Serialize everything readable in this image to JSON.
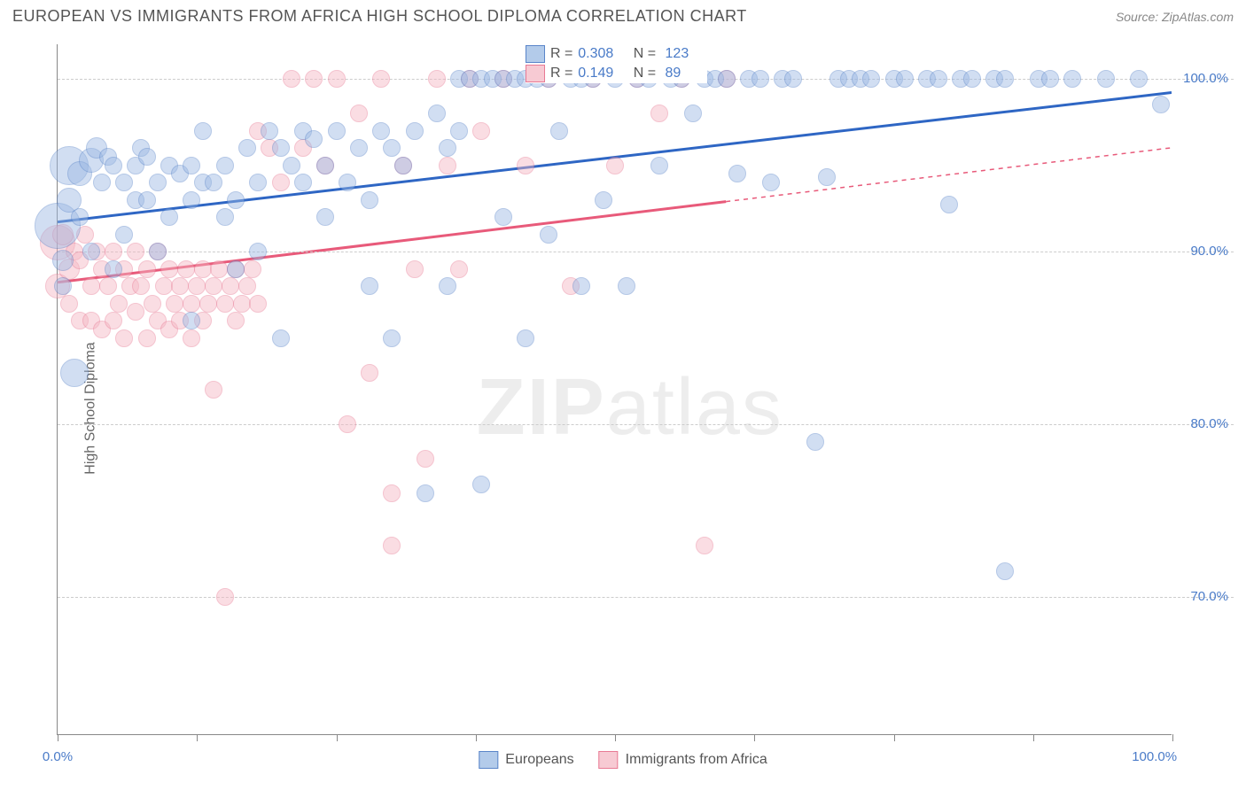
{
  "header": {
    "title": "EUROPEAN VS IMMIGRANTS FROM AFRICA HIGH SCHOOL DIPLOMA CORRELATION CHART",
    "source": "Source: ZipAtlas.com"
  },
  "watermark": {
    "prefix": "ZIP",
    "suffix": "atlas"
  },
  "chart": {
    "type": "scatter",
    "background_color": "#ffffff",
    "grid_color": "#cccccc",
    "axis_color": "#888888",
    "ylabel": "High School Diploma",
    "ylabel_color": "#666666",
    "ylabel_fontsize": 16,
    "tick_label_color": "#4a7bc8",
    "tick_fontsize": 15,
    "xlim": [
      0,
      100
    ],
    "ylim": [
      62,
      102
    ],
    "yticks": [
      70,
      80,
      90,
      100
    ],
    "ytick_labels": [
      "70.0%",
      "80.0%",
      "90.0%",
      "100.0%"
    ],
    "xticks": [
      0,
      12.5,
      25,
      37.5,
      50,
      62.5,
      75,
      87.5,
      100
    ],
    "xtick_labels_shown": {
      "0": "0.0%",
      "100": "100.0%"
    },
    "series": [
      {
        "name": "Europeans",
        "color_fill": "#9bb8e3",
        "color_stroke": "#5a85c9",
        "fill_opacity": 0.45,
        "marker_radius": 10,
        "trend": {
          "color": "#2e66c4",
          "width": 3,
          "y_at_x0": 91.7,
          "y_at_x100": 99.2,
          "solid_until_x": 100
        },
        "stats": {
          "R": "0.308",
          "N": "123"
        },
        "points": [
          [
            0,
            91.5,
            26
          ],
          [
            0.5,
            89.5,
            12
          ],
          [
            0.5,
            88,
            10
          ],
          [
            1,
            95,
            22
          ],
          [
            1,
            93,
            14
          ],
          [
            1.5,
            83,
            16
          ],
          [
            2,
            94.5,
            14
          ],
          [
            2,
            92,
            10
          ],
          [
            3,
            95.3,
            14
          ],
          [
            3,
            90,
            10
          ],
          [
            3.5,
            96,
            12
          ],
          [
            4,
            94,
            10
          ],
          [
            4.5,
            95.5,
            10
          ],
          [
            5,
            95,
            10
          ],
          [
            5,
            89,
            10
          ],
          [
            6,
            94,
            10
          ],
          [
            6,
            91,
            10
          ],
          [
            7,
            95,
            10
          ],
          [
            7,
            93,
            10
          ],
          [
            7.5,
            96,
            10
          ],
          [
            8,
            93,
            10
          ],
          [
            8,
            95.5,
            10
          ],
          [
            9,
            94,
            10
          ],
          [
            9,
            90,
            10
          ],
          [
            10,
            95,
            10
          ],
          [
            10,
            92,
            10
          ],
          [
            11,
            94.5,
            10
          ],
          [
            12,
            93,
            10
          ],
          [
            12,
            95,
            10
          ],
          [
            12,
            86,
            10
          ],
          [
            13,
            94,
            10
          ],
          [
            13,
            97,
            10
          ],
          [
            14,
            94,
            10
          ],
          [
            15,
            95,
            10
          ],
          [
            15,
            92,
            10
          ],
          [
            16,
            93,
            10
          ],
          [
            16,
            89,
            10
          ],
          [
            17,
            96,
            10
          ],
          [
            18,
            94,
            10
          ],
          [
            18,
            90,
            10
          ],
          [
            19,
            97,
            10
          ],
          [
            20,
            96,
            10
          ],
          [
            20,
            85,
            10
          ],
          [
            21,
            95,
            10
          ],
          [
            22,
            94,
            10
          ],
          [
            22,
            97,
            10
          ],
          [
            23,
            96.5,
            10
          ],
          [
            24,
            95,
            10
          ],
          [
            24,
            92,
            10
          ],
          [
            25,
            97,
            10
          ],
          [
            26,
            94,
            10
          ],
          [
            27,
            96,
            10
          ],
          [
            28,
            93,
            10
          ],
          [
            28,
            88,
            10
          ],
          [
            29,
            97,
            10
          ],
          [
            30,
            96,
            10
          ],
          [
            30,
            85,
            10
          ],
          [
            31,
            95,
            10
          ],
          [
            32,
            97,
            10
          ],
          [
            33,
            76,
            10
          ],
          [
            34,
            98,
            10
          ],
          [
            35,
            96,
            10
          ],
          [
            35,
            88,
            10
          ],
          [
            36,
            97,
            10
          ],
          [
            36,
            100,
            10
          ],
          [
            37,
            100,
            10
          ],
          [
            38,
            100,
            10
          ],
          [
            38,
            76.5,
            10
          ],
          [
            39,
            100,
            10
          ],
          [
            40,
            100,
            10
          ],
          [
            40,
            92,
            10
          ],
          [
            41,
            100,
            10
          ],
          [
            42,
            100,
            10
          ],
          [
            42,
            85,
            10
          ],
          [
            43,
            100,
            10
          ],
          [
            44,
            100,
            10
          ],
          [
            44,
            91,
            10
          ],
          [
            45,
            97,
            10
          ],
          [
            46,
            100,
            10
          ],
          [
            47,
            100,
            10
          ],
          [
            47,
            88,
            10
          ],
          [
            48,
            100,
            10
          ],
          [
            49,
            93,
            10
          ],
          [
            50,
            100,
            10
          ],
          [
            51,
            88,
            10
          ],
          [
            52,
            100,
            10
          ],
          [
            53,
            100,
            10
          ],
          [
            54,
            95,
            10
          ],
          [
            55,
            100,
            10
          ],
          [
            56,
            100,
            10
          ],
          [
            57,
            98,
            10
          ],
          [
            58,
            100,
            10
          ],
          [
            59,
            100,
            10
          ],
          [
            60,
            100,
            10
          ],
          [
            61,
            94.5,
            10
          ],
          [
            62,
            100,
            10
          ],
          [
            63,
            100,
            10
          ],
          [
            64,
            94,
            10
          ],
          [
            65,
            100,
            10
          ],
          [
            66,
            100,
            10
          ],
          [
            68,
            79,
            10
          ],
          [
            69,
            94.3,
            10
          ],
          [
            70,
            100,
            10
          ],
          [
            71,
            100,
            10
          ],
          [
            72,
            100,
            10
          ],
          [
            73,
            100,
            10
          ],
          [
            75,
            100,
            10
          ],
          [
            76,
            100,
            10
          ],
          [
            78,
            100,
            10
          ],
          [
            79,
            100,
            10
          ],
          [
            80,
            92.7,
            10
          ],
          [
            81,
            100,
            10
          ],
          [
            82,
            100,
            10
          ],
          [
            84,
            100,
            10
          ],
          [
            85,
            100,
            10
          ],
          [
            85,
            71.5,
            10
          ],
          [
            88,
            100,
            10
          ],
          [
            89,
            100,
            10
          ],
          [
            91,
            100,
            10
          ],
          [
            94,
            100,
            10
          ],
          [
            97,
            100,
            10
          ],
          [
            99,
            98.5,
            10
          ]
        ]
      },
      {
        "name": "Immigrants from Africa",
        "color_fill": "#f4b6c2",
        "color_stroke": "#e87a94",
        "fill_opacity": 0.45,
        "marker_radius": 10,
        "trend": {
          "color": "#e85a7a",
          "width": 3,
          "y_at_x0": 88.2,
          "y_at_x100": 96.0,
          "solid_until_x": 60
        },
        "stats": {
          "R": "0.149",
          "N": "89"
        },
        "points": [
          [
            0,
            90.5,
            20
          ],
          [
            0,
            88,
            14
          ],
          [
            0.5,
            91,
            12
          ],
          [
            1,
            89,
            12
          ],
          [
            1,
            87,
            10
          ],
          [
            1.5,
            90,
            10
          ],
          [
            2,
            89.5,
            10
          ],
          [
            2,
            86,
            10
          ],
          [
            2.5,
            91,
            10
          ],
          [
            3,
            88,
            10
          ],
          [
            3,
            86,
            10
          ],
          [
            3.5,
            90,
            10
          ],
          [
            4,
            89,
            10
          ],
          [
            4,
            85.5,
            10
          ],
          [
            4.5,
            88,
            10
          ],
          [
            5,
            90,
            10
          ],
          [
            5,
            86,
            10
          ],
          [
            5.5,
            87,
            10
          ],
          [
            6,
            89,
            10
          ],
          [
            6,
            85,
            10
          ],
          [
            6.5,
            88,
            10
          ],
          [
            7,
            90,
            10
          ],
          [
            7,
            86.5,
            10
          ],
          [
            7.5,
            88,
            10
          ],
          [
            8,
            89,
            10
          ],
          [
            8,
            85,
            10
          ],
          [
            8.5,
            87,
            10
          ],
          [
            9,
            90,
            10
          ],
          [
            9,
            86,
            10
          ],
          [
            9.5,
            88,
            10
          ],
          [
            10,
            89,
            10
          ],
          [
            10,
            85.5,
            10
          ],
          [
            10.5,
            87,
            10
          ],
          [
            11,
            88,
            10
          ],
          [
            11,
            86,
            10
          ],
          [
            11.5,
            89,
            10
          ],
          [
            12,
            87,
            10
          ],
          [
            12,
            85,
            10
          ],
          [
            12.5,
            88,
            10
          ],
          [
            13,
            89,
            10
          ],
          [
            13,
            86,
            10
          ],
          [
            13.5,
            87,
            10
          ],
          [
            14,
            88,
            10
          ],
          [
            14,
            82,
            10
          ],
          [
            14.5,
            89,
            10
          ],
          [
            15,
            87,
            10
          ],
          [
            15,
            70,
            10
          ],
          [
            15.5,
            88,
            10
          ],
          [
            16,
            89,
            10
          ],
          [
            16,
            86,
            10
          ],
          [
            16.5,
            87,
            10
          ],
          [
            17,
            88,
            10
          ],
          [
            17.5,
            89,
            10
          ],
          [
            18,
            87,
            10
          ],
          [
            18,
            97,
            10
          ],
          [
            19,
            96,
            10
          ],
          [
            20,
            94,
            10
          ],
          [
            21,
            100,
            10
          ],
          [
            22,
            96,
            10
          ],
          [
            23,
            100,
            10
          ],
          [
            24,
            95,
            10
          ],
          [
            25,
            100,
            10
          ],
          [
            26,
            80,
            10
          ],
          [
            27,
            98,
            10
          ],
          [
            28,
            83,
            10
          ],
          [
            29,
            100,
            10
          ],
          [
            30,
            73,
            10
          ],
          [
            30,
            76,
            10
          ],
          [
            31,
            95,
            10
          ],
          [
            32,
            89,
            10
          ],
          [
            33,
            78,
            10
          ],
          [
            34,
            100,
            10
          ],
          [
            35,
            95,
            10
          ],
          [
            36,
            89,
            10
          ],
          [
            37,
            100,
            10
          ],
          [
            38,
            97,
            10
          ],
          [
            40,
            100,
            10
          ],
          [
            42,
            95,
            10
          ],
          [
            44,
            100,
            10
          ],
          [
            46,
            88,
            10
          ],
          [
            48,
            100,
            10
          ],
          [
            50,
            95,
            10
          ],
          [
            52,
            100,
            10
          ],
          [
            54,
            98,
            10
          ],
          [
            56,
            100,
            10
          ],
          [
            58,
            73,
            10
          ],
          [
            60,
            100,
            10
          ]
        ]
      }
    ],
    "legend_bottom": [
      {
        "label": "Europeans",
        "swatch_fill": "#b3cbea",
        "swatch_stroke": "#5a85c9"
      },
      {
        "label": "Immigrants from Africa",
        "swatch_fill": "#f7cad3",
        "swatch_stroke": "#e87a94"
      }
    ]
  }
}
